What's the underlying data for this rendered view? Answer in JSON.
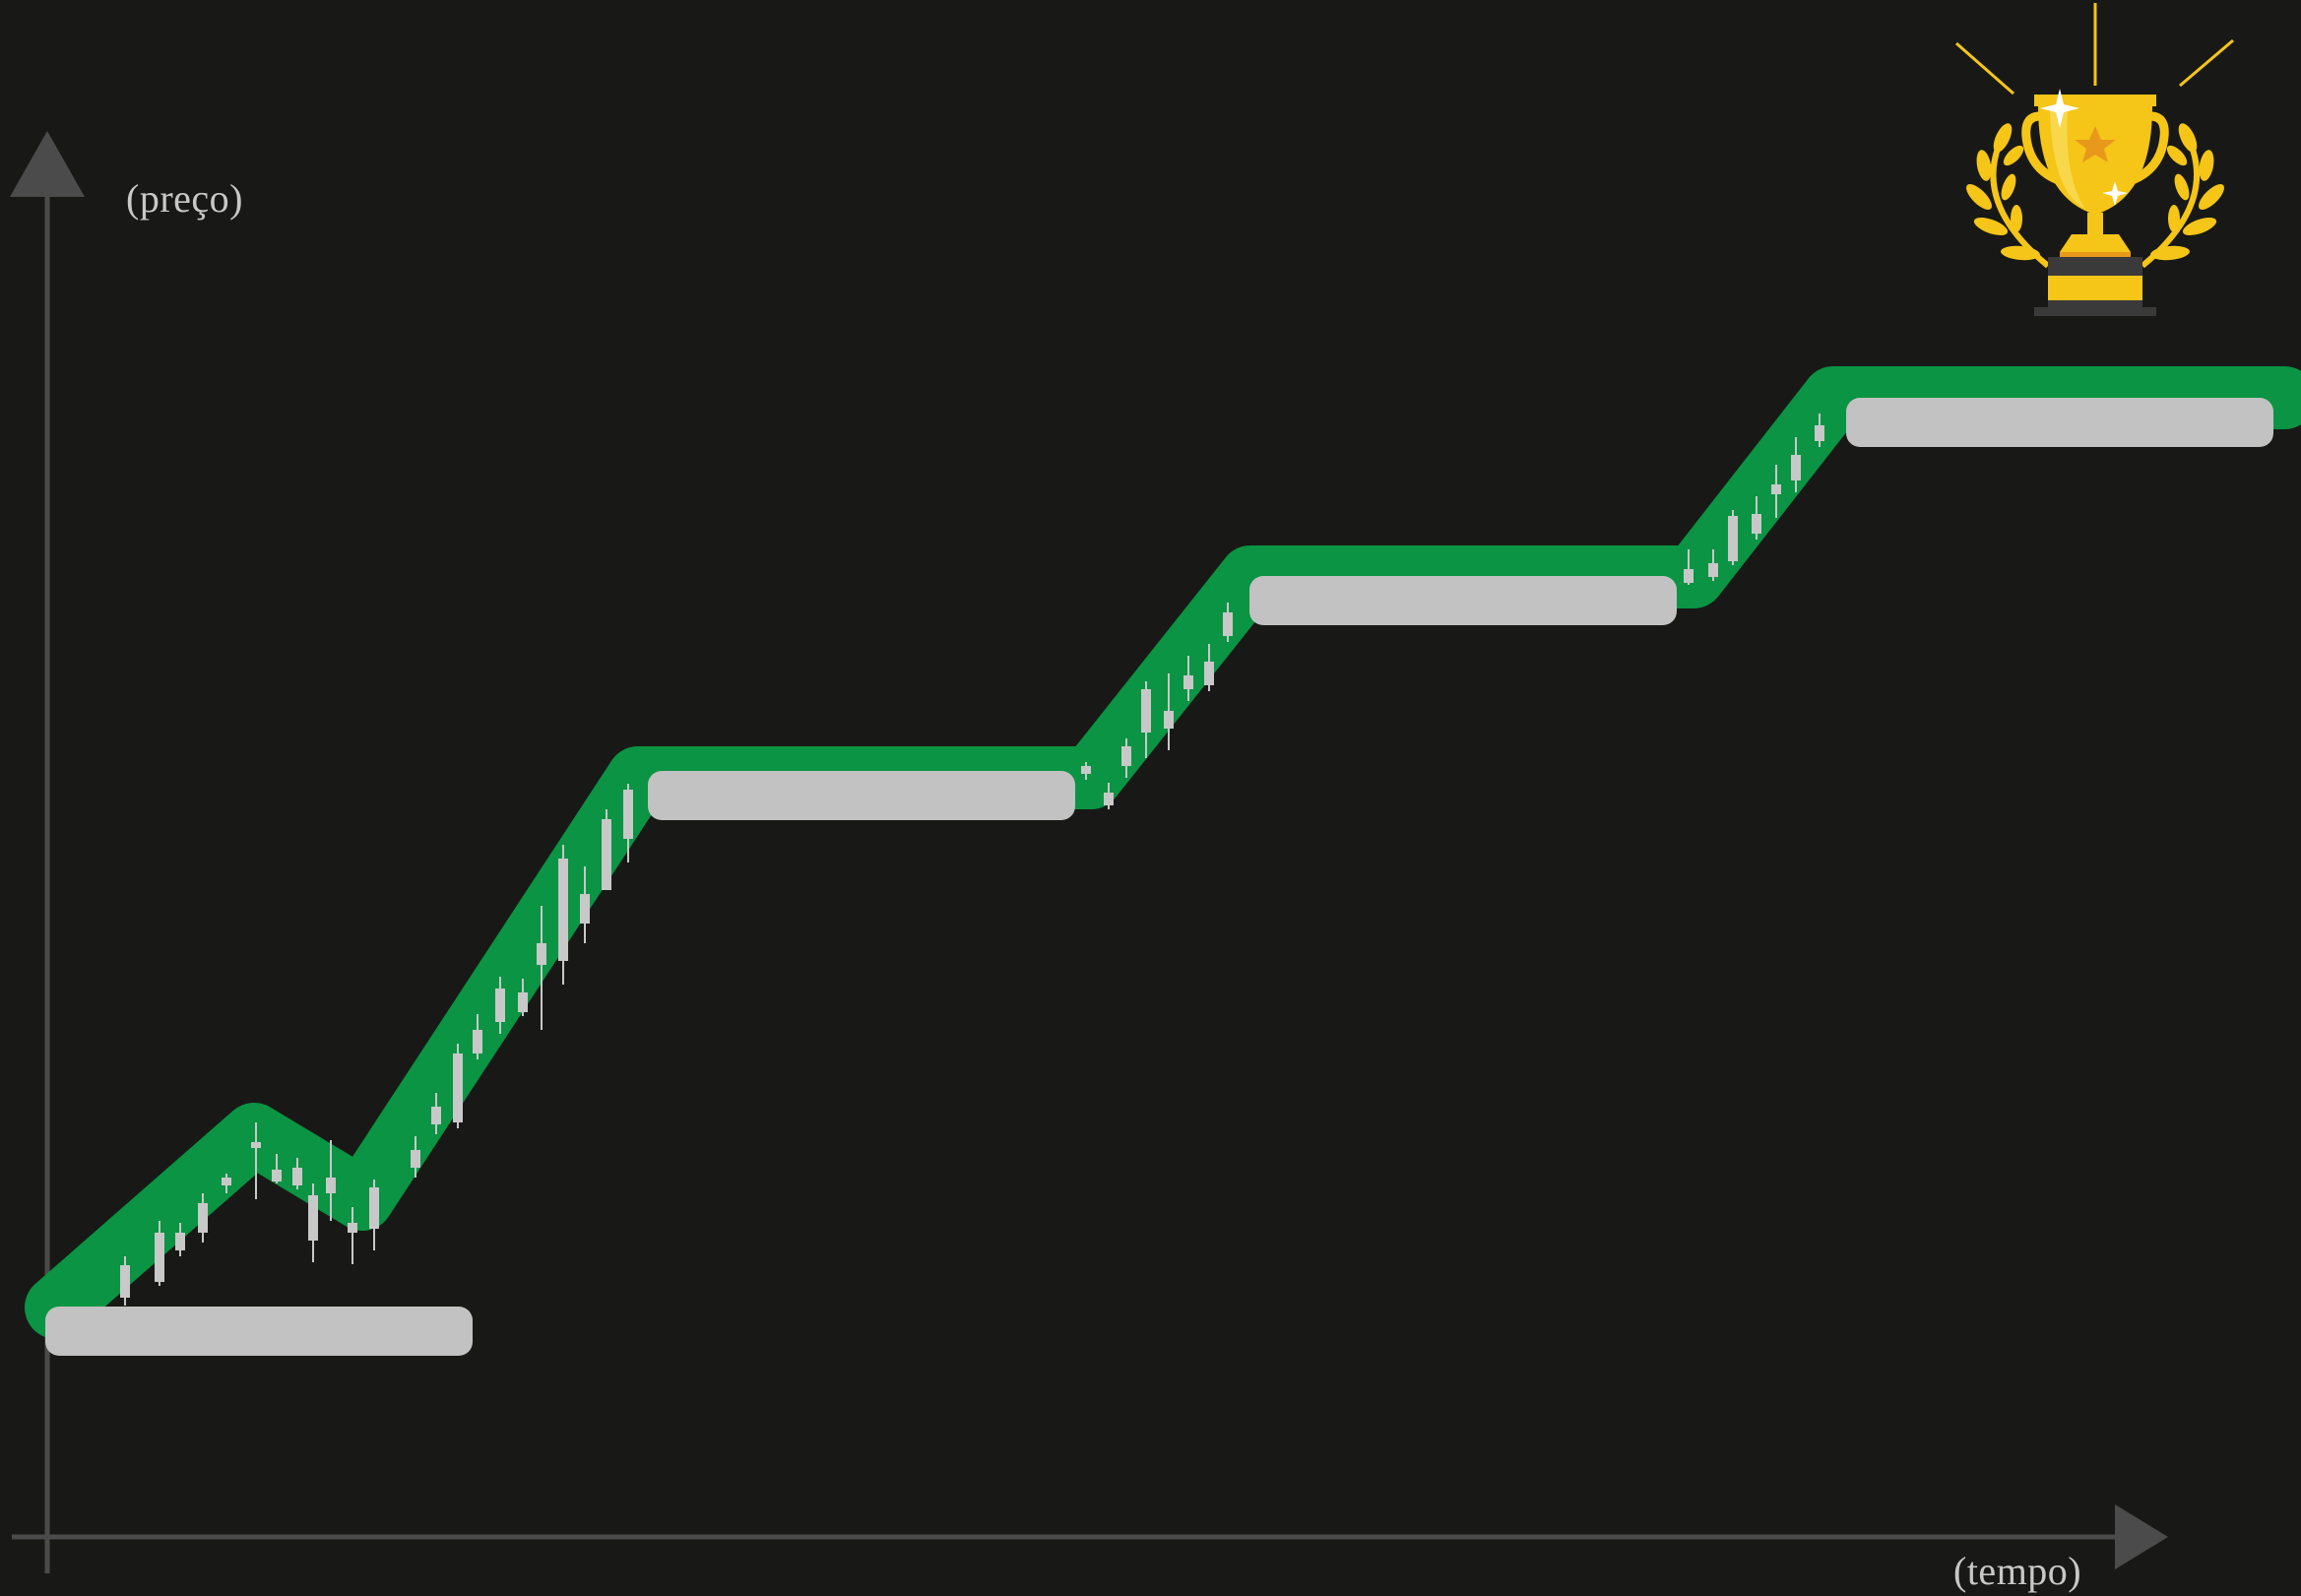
{
  "diagram": {
    "axes": {
      "y_label": "(preço)",
      "x_label": "(tempo)"
    },
    "stages": [
      {
        "step": 1,
        "label": ""
      },
      {
        "step": 2,
        "label": ""
      },
      {
        "step": 3,
        "label": ""
      },
      {
        "step": 4,
        "label": ""
      }
    ],
    "end_icon": "trophy-with-laurels-icon",
    "colors": {
      "background": "#181917",
      "axis": "#4b4b4b",
      "path": "#0a9443",
      "placeholder": "#c2c2c2",
      "candles": "#c8c8c8",
      "trophy": "#f5c518",
      "trophy_accent": "#e8981a"
    }
  }
}
